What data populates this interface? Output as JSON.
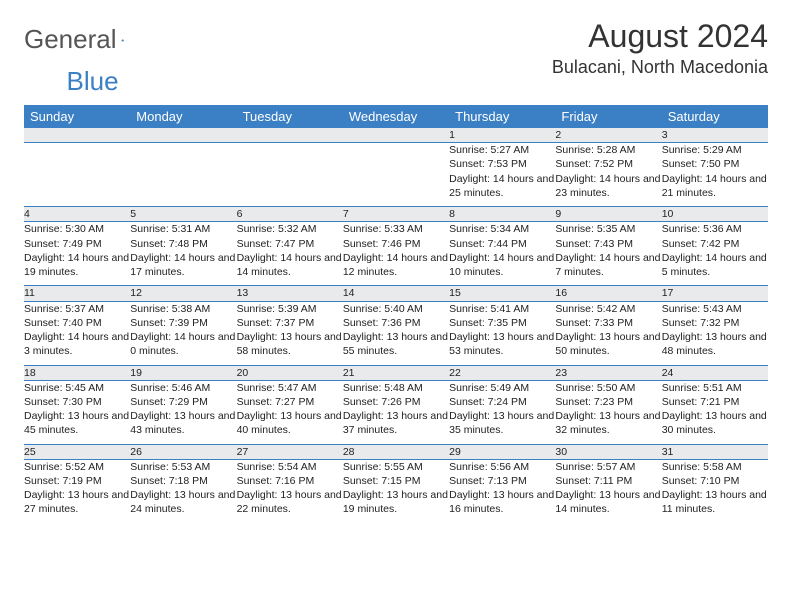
{
  "logo": {
    "part1": "General",
    "part2": "Blue"
  },
  "title": "August 2024",
  "location": "Bulacani, North Macedonia",
  "colors": {
    "header_bg": "#3b7fc4",
    "header_fg": "#ffffff",
    "daynum_bg": "#e9eaec",
    "border": "#3b7fc4",
    "text": "#222222",
    "page_bg": "#ffffff"
  },
  "typography": {
    "title_fontsize": 32,
    "location_fontsize": 18,
    "weekday_fontsize": 13,
    "cell_fontsize": 10.5
  },
  "weekdays": [
    "Sunday",
    "Monday",
    "Tuesday",
    "Wednesday",
    "Thursday",
    "Friday",
    "Saturday"
  ],
  "weeks": [
    [
      null,
      null,
      null,
      null,
      {
        "n": "1",
        "sr": "5:27 AM",
        "ss": "7:53 PM",
        "dl": "14 hours and 25 minutes."
      },
      {
        "n": "2",
        "sr": "5:28 AM",
        "ss": "7:52 PM",
        "dl": "14 hours and 23 minutes."
      },
      {
        "n": "3",
        "sr": "5:29 AM",
        "ss": "7:50 PM",
        "dl": "14 hours and 21 minutes."
      }
    ],
    [
      {
        "n": "4",
        "sr": "5:30 AM",
        "ss": "7:49 PM",
        "dl": "14 hours and 19 minutes."
      },
      {
        "n": "5",
        "sr": "5:31 AM",
        "ss": "7:48 PM",
        "dl": "14 hours and 17 minutes."
      },
      {
        "n": "6",
        "sr": "5:32 AM",
        "ss": "7:47 PM",
        "dl": "14 hours and 14 minutes."
      },
      {
        "n": "7",
        "sr": "5:33 AM",
        "ss": "7:46 PM",
        "dl": "14 hours and 12 minutes."
      },
      {
        "n": "8",
        "sr": "5:34 AM",
        "ss": "7:44 PM",
        "dl": "14 hours and 10 minutes."
      },
      {
        "n": "9",
        "sr": "5:35 AM",
        "ss": "7:43 PM",
        "dl": "14 hours and 7 minutes."
      },
      {
        "n": "10",
        "sr": "5:36 AM",
        "ss": "7:42 PM",
        "dl": "14 hours and 5 minutes."
      }
    ],
    [
      {
        "n": "11",
        "sr": "5:37 AM",
        "ss": "7:40 PM",
        "dl": "14 hours and 3 minutes."
      },
      {
        "n": "12",
        "sr": "5:38 AM",
        "ss": "7:39 PM",
        "dl": "14 hours and 0 minutes."
      },
      {
        "n": "13",
        "sr": "5:39 AM",
        "ss": "7:37 PM",
        "dl": "13 hours and 58 minutes."
      },
      {
        "n": "14",
        "sr": "5:40 AM",
        "ss": "7:36 PM",
        "dl": "13 hours and 55 minutes."
      },
      {
        "n": "15",
        "sr": "5:41 AM",
        "ss": "7:35 PM",
        "dl": "13 hours and 53 minutes."
      },
      {
        "n": "16",
        "sr": "5:42 AM",
        "ss": "7:33 PM",
        "dl": "13 hours and 50 minutes."
      },
      {
        "n": "17",
        "sr": "5:43 AM",
        "ss": "7:32 PM",
        "dl": "13 hours and 48 minutes."
      }
    ],
    [
      {
        "n": "18",
        "sr": "5:45 AM",
        "ss": "7:30 PM",
        "dl": "13 hours and 45 minutes."
      },
      {
        "n": "19",
        "sr": "5:46 AM",
        "ss": "7:29 PM",
        "dl": "13 hours and 43 minutes."
      },
      {
        "n": "20",
        "sr": "5:47 AM",
        "ss": "7:27 PM",
        "dl": "13 hours and 40 minutes."
      },
      {
        "n": "21",
        "sr": "5:48 AM",
        "ss": "7:26 PM",
        "dl": "13 hours and 37 minutes."
      },
      {
        "n": "22",
        "sr": "5:49 AM",
        "ss": "7:24 PM",
        "dl": "13 hours and 35 minutes."
      },
      {
        "n": "23",
        "sr": "5:50 AM",
        "ss": "7:23 PM",
        "dl": "13 hours and 32 minutes."
      },
      {
        "n": "24",
        "sr": "5:51 AM",
        "ss": "7:21 PM",
        "dl": "13 hours and 30 minutes."
      }
    ],
    [
      {
        "n": "25",
        "sr": "5:52 AM",
        "ss": "7:19 PM",
        "dl": "13 hours and 27 minutes."
      },
      {
        "n": "26",
        "sr": "5:53 AM",
        "ss": "7:18 PM",
        "dl": "13 hours and 24 minutes."
      },
      {
        "n": "27",
        "sr": "5:54 AM",
        "ss": "7:16 PM",
        "dl": "13 hours and 22 minutes."
      },
      {
        "n": "28",
        "sr": "5:55 AM",
        "ss": "7:15 PM",
        "dl": "13 hours and 19 minutes."
      },
      {
        "n": "29",
        "sr": "5:56 AM",
        "ss": "7:13 PM",
        "dl": "13 hours and 16 minutes."
      },
      {
        "n": "30",
        "sr": "5:57 AM",
        "ss": "7:11 PM",
        "dl": "13 hours and 14 minutes."
      },
      {
        "n": "31",
        "sr": "5:58 AM",
        "ss": "7:10 PM",
        "dl": "13 hours and 11 minutes."
      }
    ]
  ],
  "labels": {
    "sunrise": "Sunrise: ",
    "sunset": "Sunset: ",
    "daylight": "Daylight: "
  }
}
